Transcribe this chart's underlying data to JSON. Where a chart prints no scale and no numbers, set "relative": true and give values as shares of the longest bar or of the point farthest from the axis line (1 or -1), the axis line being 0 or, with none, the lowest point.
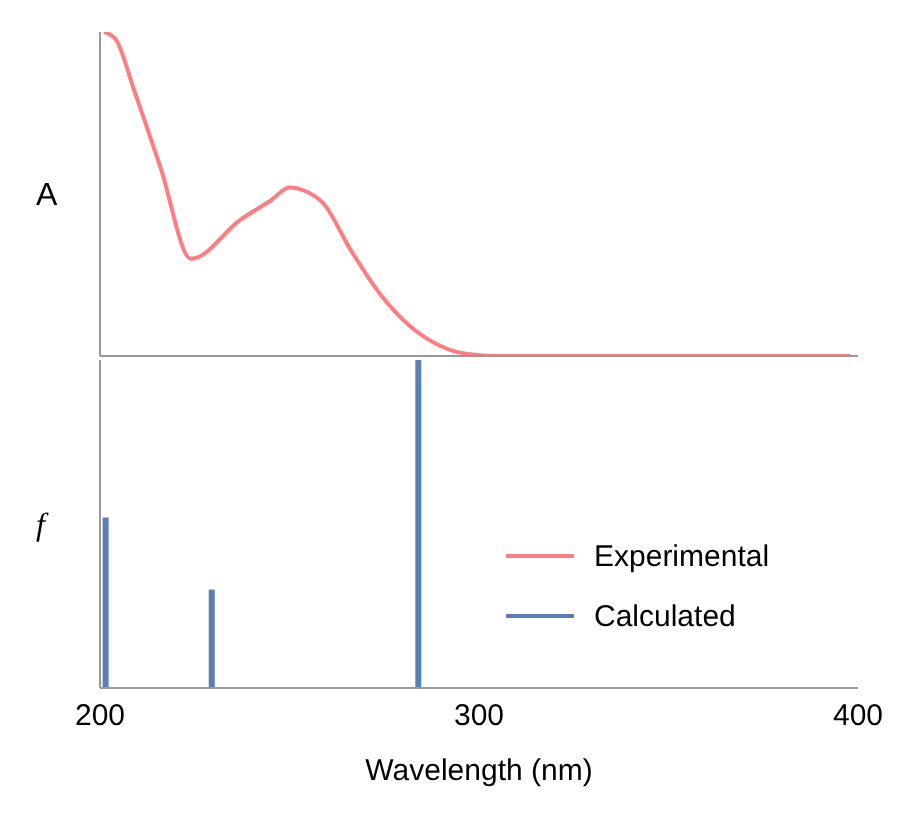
{
  "chart_data": [
    {
      "type": "line",
      "ylabel": "A",
      "relative": true,
      "xlim": [
        200,
        400
      ],
      "tick_labels": false,
      "legend": "bottom right",
      "series": [
        {
          "name": "Experimental",
          "color": "#ff7c80",
          "x": [
            201,
            204,
            209,
            216,
            224,
            237,
            245,
            250,
            254,
            259,
            266,
            274,
            282,
            290,
            297,
            305,
            350,
            398
          ],
          "values": [
            1.0,
            0.98,
            0.82,
            0.58,
            0.3,
            0.42,
            0.48,
            0.52,
            0.51,
            0.47,
            0.33,
            0.19,
            0.09,
            0.03,
            0.006,
            0,
            0,
            0
          ]
        }
      ]
    },
    {
      "type": "bar",
      "ylabel": "f",
      "xlabel": "Wavelength (nm)",
      "relative": true,
      "xlim": [
        200,
        400
      ],
      "xticks": [
        200,
        300,
        400
      ],
      "tick_labels": "x",
      "legend": "right",
      "series": [
        {
          "name": "Calculated",
          "color": "#5b7fb5",
          "x": [
            201.5,
            229.5,
            284
          ],
          "values": [
            0.52,
            0.3,
            1.0
          ]
        }
      ]
    }
  ]
}
